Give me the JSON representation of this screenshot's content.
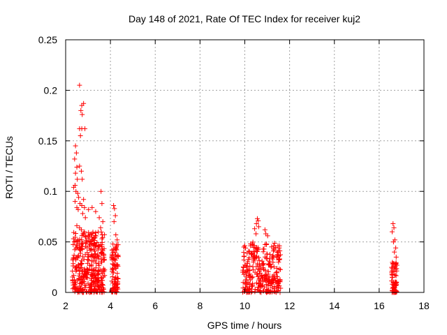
{
  "chart_data": {
    "type": "scatter",
    "title": "Day 148 of 2021, Rate Of TEC Index for receiver kuj2",
    "xlabel": "GPS time / hours",
    "ylabel": "ROTI / TECUs",
    "xlim": [
      2,
      18
    ],
    "ylim": [
      0,
      0.25
    ],
    "xticks": [
      2,
      4,
      6,
      8,
      10,
      12,
      14,
      16,
      18
    ],
    "xtick_labels": [
      "2",
      "4",
      "6",
      "8",
      "10",
      "12",
      "14",
      "16",
      "18"
    ],
    "yticks": [
      0,
      0.05,
      0.1,
      0.15,
      0.2,
      0.25
    ],
    "ytick_labels": [
      "0",
      "0.05",
      "0.1",
      "0.15",
      "0.2",
      "0.25"
    ],
    "grid": true,
    "marker": "+",
    "series": [
      {
        "name": "ROTI",
        "color": "#ff0000",
        "points": [
          [
            2.62,
            0.205
          ],
          [
            2.72,
            0.185
          ],
          [
            2.8,
            0.187
          ],
          [
            2.68,
            0.18
          ],
          [
            2.74,
            0.176
          ],
          [
            2.62,
            0.162
          ],
          [
            2.72,
            0.162
          ],
          [
            2.86,
            0.162
          ],
          [
            2.66,
            0.155
          ],
          [
            2.44,
            0.145
          ],
          [
            2.48,
            0.138
          ],
          [
            2.4,
            0.132
          ],
          [
            2.5,
            0.124
          ],
          [
            2.44,
            0.118
          ],
          [
            2.52,
            0.112
          ],
          [
            2.62,
            0.125
          ],
          [
            2.7,
            0.12
          ],
          [
            2.74,
            0.112
          ],
          [
            2.36,
            0.104
          ],
          [
            2.42,
            0.106
          ],
          [
            2.46,
            0.1
          ],
          [
            2.54,
            0.098
          ],
          [
            2.58,
            0.094
          ],
          [
            2.42,
            0.09
          ],
          [
            2.5,
            0.084
          ],
          [
            2.56,
            0.082
          ],
          [
            2.64,
            0.088
          ],
          [
            2.72,
            0.086
          ],
          [
            2.8,
            0.092
          ],
          [
            2.84,
            0.084
          ],
          [
            2.76,
            0.078
          ],
          [
            2.88,
            0.074
          ],
          [
            3.02,
            0.082
          ],
          [
            3.18,
            0.084
          ],
          [
            3.34,
            0.08
          ],
          [
            3.5,
            0.074
          ],
          [
            3.58,
            0.1
          ],
          [
            3.62,
            0.088
          ],
          [
            3.66,
            0.07
          ],
          [
            3.56,
            0.064
          ],
          [
            2.5,
            0.066
          ],
          [
            2.62,
            0.064
          ],
          [
            2.7,
            0.062
          ],
          [
            2.84,
            0.06
          ],
          [
            4.14,
            0.086
          ],
          [
            4.18,
            0.083
          ],
          [
            4.22,
            0.076
          ],
          [
            4.16,
            0.07
          ],
          [
            4.24,
            0.057
          ],
          [
            4.3,
            0.052
          ],
          [
            10.56,
            0.073
          ],
          [
            10.6,
            0.071
          ],
          [
            10.52,
            0.068
          ],
          [
            10.62,
            0.065
          ],
          [
            10.44,
            0.063
          ],
          [
            10.5,
            0.058
          ],
          [
            10.9,
            0.062
          ],
          [
            10.94,
            0.058
          ],
          [
            11.02,
            0.056
          ],
          [
            10.34,
            0.048
          ],
          [
            11.48,
            0.046
          ],
          [
            11.54,
            0.044
          ],
          [
            16.62,
            0.068
          ],
          [
            16.66,
            0.064
          ],
          [
            16.58,
            0.06
          ],
          [
            16.7,
            0.052
          ],
          [
            16.64,
            0.05
          ],
          [
            16.74,
            0.044
          ],
          [
            16.68,
            0.04
          ],
          [
            16.76,
            0.035
          ]
        ]
      }
    ],
    "dense_clusters": [
      {
        "x_range": [
          2.3,
          3.75
        ],
        "y_range": [
          0.0,
          0.06
        ],
        "count": 380
      },
      {
        "x_range": [
          4.05,
          4.35
        ],
        "y_range": [
          0.0,
          0.05
        ],
        "count": 90
      },
      {
        "x_range": [
          9.9,
          11.6
        ],
        "y_range": [
          0.0,
          0.05
        ],
        "count": 300
      },
      {
        "x_range": [
          16.55,
          16.8
        ],
        "y_range": [
          0.0,
          0.03
        ],
        "count": 70
      }
    ]
  }
}
